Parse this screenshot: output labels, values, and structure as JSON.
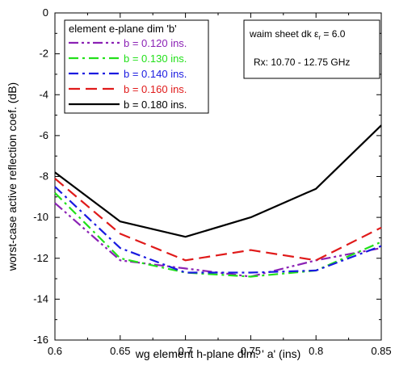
{
  "chart_data": {
    "type": "line",
    "xlabel": "wg element h-plane dim. ' a'  (ins)",
    "ylabel": "worst-case active reflection coef. (dB)",
    "xlim": [
      0.6,
      0.85
    ],
    "ylim": [
      -16,
      0
    ],
    "x_ticks": [
      "0.6",
      "0.65",
      "0.7",
      "0.75",
      "0.8",
      "0.85"
    ],
    "y_ticks": [
      "0",
      "-2",
      "-4",
      "-6",
      "-8",
      "-10",
      "-12",
      "-14",
      "-16"
    ],
    "grid": false,
    "legend": {
      "title": "element e-plane dim 'b'",
      "position": "top-left"
    },
    "annotations": {
      "sheet_prefix": "waim sheet dk ",
      "sheet_symbol": "ε",
      "sheet_sub": "r",
      "sheet_suffix": " = 6.0",
      "band": "Rx: 10.70 - 12.75 GHz"
    },
    "series": [
      {
        "name": "b = 0.120 ins.",
        "color": "#8B22B5",
        "dash": "dashdotdot",
        "x": [
          0.6,
          0.65,
          0.7,
          0.75,
          0.8,
          0.85
        ],
        "y": [
          -9.3,
          -12.1,
          -12.5,
          -12.9,
          -12.1,
          -11.5
        ]
      },
      {
        "name": "b = 0.130 ins.",
        "color": "#22E01A",
        "dash": "dashdot",
        "x": [
          0.6,
          0.65,
          0.7,
          0.75,
          0.8,
          0.85
        ],
        "y": [
          -8.8,
          -12.0,
          -12.7,
          -12.9,
          -12.6,
          -11.2
        ]
      },
      {
        "name": "b = 0.140 ins.",
        "color": "#1A1AE0",
        "dash": "dashdot",
        "x": [
          0.6,
          0.65,
          0.7,
          0.75,
          0.8,
          0.85
        ],
        "y": [
          -8.5,
          -11.5,
          -12.7,
          -12.7,
          -12.6,
          -11.4
        ]
      },
      {
        "name": "b = 0.160 ins.",
        "color": "#E01A1A",
        "dash": "dash",
        "x": [
          0.6,
          0.65,
          0.7,
          0.75,
          0.8,
          0.85
        ],
        "y": [
          -8.1,
          -10.8,
          -12.1,
          -11.6,
          -12.1,
          -10.5
        ]
      },
      {
        "name": "b = 0.180 ins.",
        "color": "#000000",
        "dash": "solid",
        "x": [
          0.6,
          0.65,
          0.7,
          0.75,
          0.8,
          0.85
        ],
        "y": [
          -7.8,
          -10.2,
          -10.95,
          -10.0,
          -8.6,
          -5.5
        ]
      }
    ]
  }
}
